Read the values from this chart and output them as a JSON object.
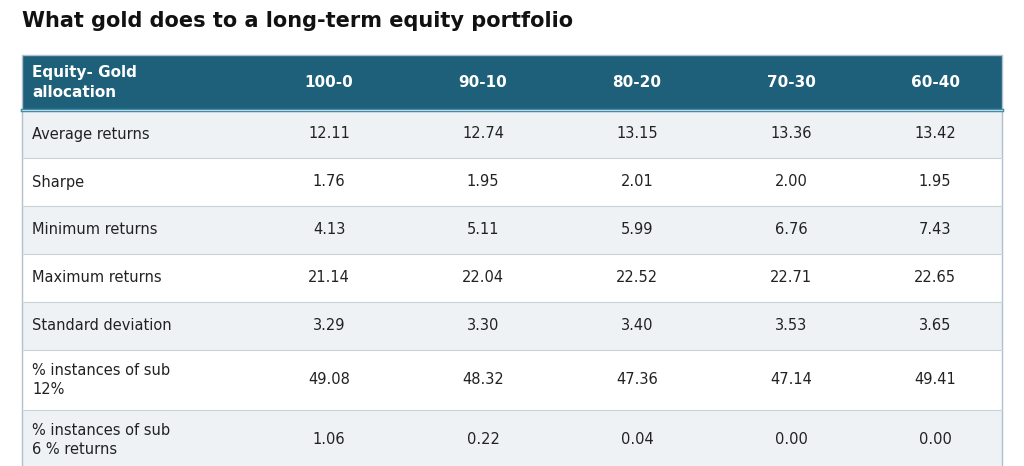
{
  "title": "What gold does to a long-term equity portfolio",
  "header_bg_color": "#1e5f7a",
  "header_text_color": "#ffffff",
  "row_bg_even": "#eef2f5",
  "row_bg_odd": "#ffffff",
  "separator_color": "#c8d4da",
  "title_fontsize": 15,
  "header_fontsize": 11,
  "cell_fontsize": 10.5,
  "col_header": "Equity- Gold\nallocation",
  "columns": [
    "100-0",
    "90-10",
    "80-20",
    "70-30",
    "60-40"
  ],
  "rows": [
    {
      "label": "Average returns",
      "values": [
        "12.11",
        "12.74",
        "13.15",
        "13.36",
        "13.42"
      ]
    },
    {
      "label": "Sharpe",
      "values": [
        "1.76",
        "1.95",
        "2.01",
        "2.00",
        "1.95"
      ]
    },
    {
      "label": "Minimum returns",
      "values": [
        "4.13",
        "5.11",
        "5.99",
        "6.76",
        "7.43"
      ]
    },
    {
      "label": "Maximum returns",
      "values": [
        "21.14",
        "22.04",
        "22.52",
        "22.71",
        "22.65"
      ]
    },
    {
      "label": "Standard deviation",
      "values": [
        "3.29",
        "3.30",
        "3.40",
        "3.53",
        "3.65"
      ]
    },
    {
      "label": "% instances of sub\n12%",
      "values": [
        "49.08",
        "48.32",
        "47.36",
        "47.14",
        "49.41"
      ]
    },
    {
      "label": "% instances of sub\n6 % returns",
      "values": [
        "1.06",
        "0.22",
        "0.04",
        "0.00",
        "0.00"
      ]
    }
  ],
  "fig_bg_color": "#ffffff"
}
